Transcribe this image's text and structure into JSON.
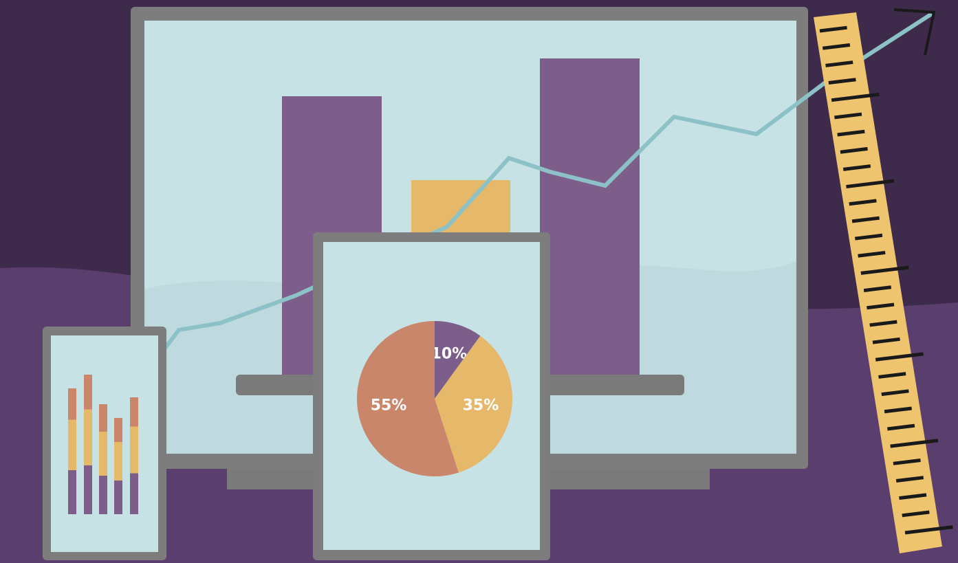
{
  "chart_data": {
    "type": "pie",
    "values": [
      10,
      35,
      55
    ],
    "value_labels": [
      "10%",
      "35%",
      "55%"
    ],
    "colors": [
      "#7d5e8a",
      "#e6b86a",
      "#c9866a"
    ]
  }
}
